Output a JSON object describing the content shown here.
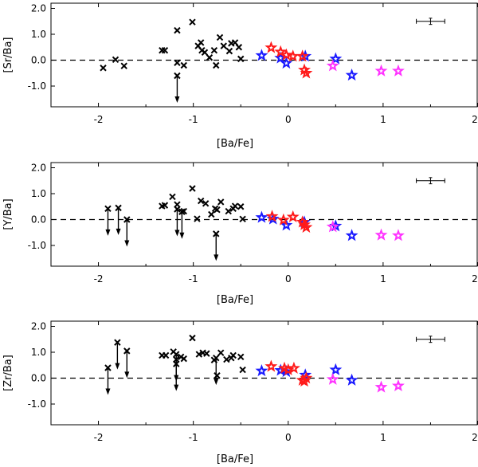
{
  "chart_data": [
    {
      "type": "scatter",
      "xlabel": "[Ba/Fe]",
      "ylabel": "[Sr/Ba]",
      "xlim": [
        -2.5,
        2
      ],
      "ylim": [
        -1.8,
        2.2
      ],
      "xticks": [
        -2,
        -1,
        0,
        1,
        2
      ],
      "yticks": [
        -1.0,
        0.0,
        1.0,
        2.0
      ],
      "x_tick_labels": [
        "-2",
        "-1",
        "0",
        "1",
        "2"
      ],
      "y_tick_labels": [
        "-1.0",
        "0.0",
        "1.0",
        "2.0"
      ],
      "reference_line_y": 0,
      "error_bar": {
        "x": 1.5,
        "y": 1.5,
        "xerr": 0.15,
        "yerr": 0.12
      },
      "series": [
        {
          "name": "crosses",
          "marker": "x",
          "color": "#000000",
          "points": [
            [
              -1.95,
              -0.3
            ],
            [
              -1.82,
              0.02
            ],
            [
              -1.73,
              -0.22
            ],
            [
              -1.33,
              0.38
            ],
            [
              -1.3,
              0.38
            ],
            [
              -1.17,
              1.15
            ],
            [
              -1.17,
              -0.1
            ],
            [
              -1.1,
              -0.2
            ],
            [
              -1.01,
              1.47
            ],
            [
              -0.95,
              0.55
            ],
            [
              -0.92,
              0.68
            ],
            [
              -0.91,
              0.38
            ],
            [
              -0.88,
              0.3
            ],
            [
              -0.83,
              0.1
            ],
            [
              -0.78,
              0.38
            ],
            [
              -0.76,
              -0.2
            ],
            [
              -0.72,
              0.88
            ],
            [
              -0.68,
              0.55
            ],
            [
              -0.62,
              0.35
            ],
            [
              -0.6,
              0.65
            ],
            [
              -0.56,
              0.68
            ],
            [
              -0.52,
              0.5
            ],
            [
              -0.5,
              0.05
            ]
          ]
        },
        {
          "name": "upper_limits",
          "marker": "arrow",
          "color": "#000000",
          "points": [
            [
              -1.17,
              -0.6
            ]
          ]
        },
        {
          "name": "blue_stars",
          "marker": "star",
          "color": "#1a1aff",
          "points": [
            [
              -0.28,
              0.18
            ],
            [
              -0.08,
              0.08
            ],
            [
              -0.02,
              -0.12
            ],
            [
              0.18,
              0.15
            ],
            [
              0.5,
              0.05
            ],
            [
              0.67,
              -0.58
            ]
          ]
        },
        {
          "name": "red_stars",
          "marker": "star",
          "color": "#ff1a1a",
          "points": [
            [
              -0.18,
              0.48
            ],
            [
              -0.08,
              0.32
            ],
            [
              -0.02,
              0.2
            ],
            [
              0.05,
              0.15
            ],
            [
              0.15,
              0.15
            ],
            [
              0.17,
              -0.38
            ],
            [
              0.19,
              -0.5
            ]
          ]
        },
        {
          "name": "magenta_stars",
          "marker": "star",
          "color": "#ff33ff",
          "points": [
            [
              0.47,
              -0.22
            ],
            [
              0.98,
              -0.42
            ],
            [
              1.16,
              -0.42
            ]
          ]
        }
      ]
    },
    {
      "type": "scatter",
      "xlabel": "[Ba/Fe]",
      "ylabel": "[Y/Ba]",
      "xlim": [
        -2.5,
        2
      ],
      "ylim": [
        -1.8,
        2.2
      ],
      "xticks": [
        -2,
        -1,
        0,
        1,
        2
      ],
      "yticks": [
        -1.0,
        0.0,
        1.0,
        2.0
      ],
      "x_tick_labels": [
        "-2",
        "-1",
        "0",
        "1",
        "2"
      ],
      "y_tick_labels": [
        "-1.0",
        "0.0",
        "1.0",
        "2.0"
      ],
      "reference_line_y": 0,
      "error_bar": {
        "x": 1.5,
        "y": 1.5,
        "xerr": 0.15,
        "yerr": 0.12
      },
      "series": [
        {
          "name": "crosses",
          "marker": "x",
          "color": "#000000",
          "points": [
            [
              -1.33,
              0.52
            ],
            [
              -1.3,
              0.55
            ],
            [
              -1.22,
              0.88
            ],
            [
              -1.17,
              0.58
            ],
            [
              -1.1,
              0.32
            ],
            [
              -1.01,
              1.2
            ],
            [
              -0.96,
              0.03
            ],
            [
              -0.92,
              0.72
            ],
            [
              -0.87,
              0.62
            ],
            [
              -0.81,
              0.2
            ],
            [
              -0.77,
              0.42
            ],
            [
              -0.75,
              0.38
            ],
            [
              -0.71,
              0.68
            ],
            [
              -0.63,
              0.32
            ],
            [
              -0.58,
              0.42
            ],
            [
              -0.56,
              0.52
            ],
            [
              -0.5,
              0.5
            ],
            [
              -0.48,
              0.02
            ]
          ]
        },
        {
          "name": "upper_limits",
          "marker": "arrow",
          "color": "#000000",
          "points": [
            [
              -1.9,
              0.42
            ],
            [
              -1.79,
              0.45
            ],
            [
              -1.7,
              0.0
            ],
            [
              -1.17,
              0.4
            ],
            [
              -1.12,
              0.3
            ],
            [
              -0.76,
              -0.55
            ]
          ]
        },
        {
          "name": "blue_stars",
          "marker": "star",
          "color": "#1a1aff",
          "points": [
            [
              -0.28,
              0.08
            ],
            [
              -0.16,
              0.02
            ],
            [
              -0.02,
              -0.22
            ],
            [
              0.17,
              -0.1
            ],
            [
              0.5,
              -0.25
            ],
            [
              0.67,
              -0.62
            ]
          ]
        },
        {
          "name": "red_stars",
          "marker": "star",
          "color": "#ff1a1a",
          "points": [
            [
              -0.17,
              0.12
            ],
            [
              -0.05,
              -0.02
            ],
            [
              0.05,
              0.1
            ],
            [
              0.15,
              -0.1
            ],
            [
              0.17,
              -0.2
            ],
            [
              0.19,
              -0.3
            ]
          ]
        },
        {
          "name": "magenta_stars",
          "marker": "star",
          "color": "#ff33ff",
          "points": [
            [
              0.47,
              -0.28
            ],
            [
              0.98,
              -0.6
            ],
            [
              1.16,
              -0.62
            ]
          ]
        }
      ]
    },
    {
      "type": "scatter",
      "xlabel": "[Ba/Fe]",
      "ylabel": "[Zr/Ba]",
      "xlim": [
        -2.5,
        2
      ],
      "ylim": [
        -1.8,
        2.2
      ],
      "xticks": [
        -2,
        -1,
        0,
        1,
        2
      ],
      "yticks": [
        -1.0,
        0.0,
        1.0,
        2.0
      ],
      "x_tick_labels": [
        "-2",
        "-1",
        "0",
        "1",
        "2"
      ],
      "y_tick_labels": [
        "-1.0",
        "0.0",
        "1.0",
        "2.0"
      ],
      "reference_line_y": 0,
      "error_bar": {
        "x": 1.5,
        "y": 1.5,
        "xerr": 0.15,
        "yerr": 0.12
      },
      "series": [
        {
          "name": "crosses",
          "marker": "x",
          "color": "#000000",
          "points": [
            [
              -1.33,
              0.88
            ],
            [
              -1.29,
              0.88
            ],
            [
              -1.21,
              1.02
            ],
            [
              -1.18,
              0.72
            ],
            [
              -1.13,
              0.82
            ],
            [
              -1.1,
              0.75
            ],
            [
              -1.01,
              1.55
            ],
            [
              -0.94,
              0.92
            ],
            [
              -0.9,
              0.98
            ],
            [
              -0.86,
              0.95
            ],
            [
              -0.78,
              0.7
            ],
            [
              -0.75,
              0.1
            ],
            [
              -0.71,
              0.98
            ],
            [
              -0.65,
              0.72
            ],
            [
              -0.6,
              0.78
            ],
            [
              -0.58,
              0.88
            ],
            [
              -0.5,
              0.82
            ],
            [
              -0.48,
              0.32
            ]
          ]
        },
        {
          "name": "upper_limits",
          "marker": "arrow",
          "color": "#000000",
          "points": [
            [
              -1.9,
              0.4
            ],
            [
              -1.8,
              1.38
            ],
            [
              -1.7,
              1.05
            ],
            [
              -1.18,
              0.92
            ],
            [
              -1.18,
              0.55
            ],
            [
              -0.76,
              0.78
            ]
          ]
        },
        {
          "name": "blue_stars",
          "marker": "star",
          "color": "#1a1aff",
          "points": [
            [
              -0.28,
              0.28
            ],
            [
              -0.08,
              0.3
            ],
            [
              -0.02,
              0.25
            ],
            [
              0.18,
              0.12
            ],
            [
              0.5,
              0.32
            ],
            [
              0.67,
              -0.08
            ]
          ]
        },
        {
          "name": "red_stars",
          "marker": "star",
          "color": "#ff1a1a",
          "points": [
            [
              -0.18,
              0.45
            ],
            [
              -0.04,
              0.38
            ],
            [
              0.0,
              0.32
            ],
            [
              0.06,
              0.38
            ],
            [
              0.15,
              -0.08
            ],
            [
              0.17,
              -0.12
            ],
            [
              0.19,
              0.0
            ]
          ]
        },
        {
          "name": "magenta_stars",
          "marker": "star",
          "color": "#ff33ff",
          "points": [
            [
              0.47,
              -0.05
            ],
            [
              0.98,
              -0.35
            ],
            [
              1.16,
              -0.3
            ]
          ]
        }
      ]
    }
  ]
}
